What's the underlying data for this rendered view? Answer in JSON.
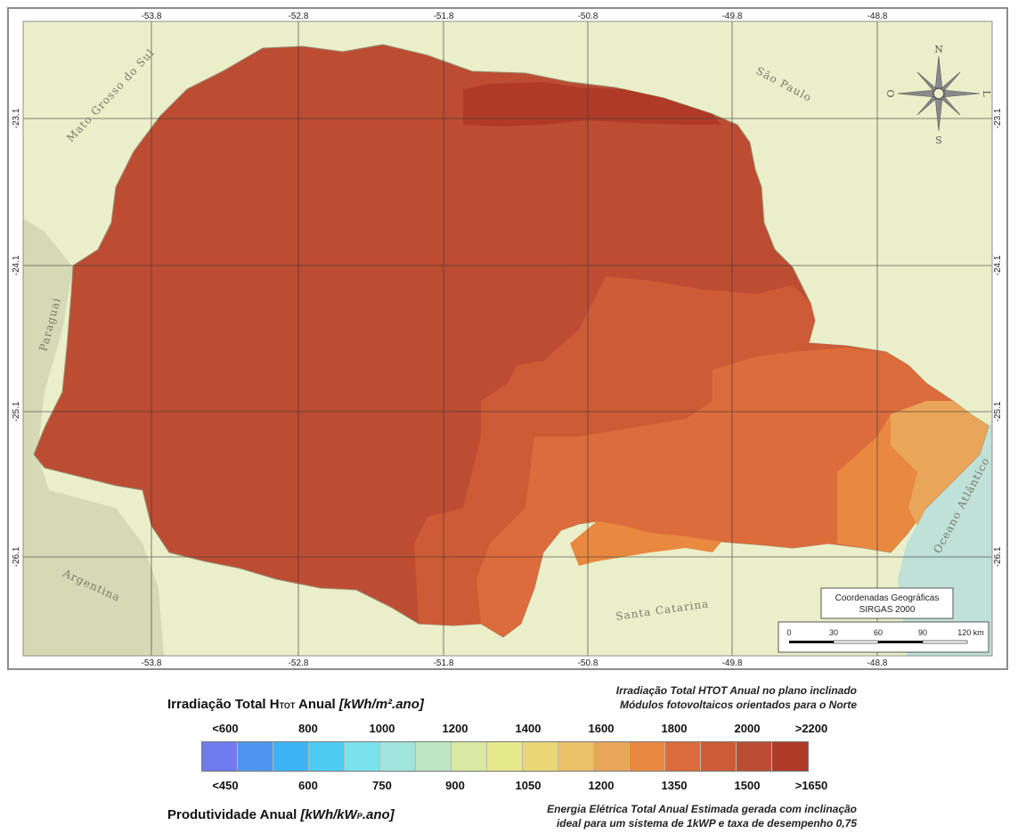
{
  "map": {
    "graticule_lon_labels": [
      "-53.8",
      "-52.8",
      "-51.8",
      "-50.8",
      "-49.8",
      "-48.8"
    ],
    "graticule_lat_labels": [
      "-23.1",
      "-24.1",
      "-25.1",
      "-26.1"
    ],
    "regions": {
      "mato_grosso_do_sul": "Mato Grosso do Sul",
      "sao_paulo": "São Paulo",
      "paraguai": "Paraguai",
      "argentina": "Argentina",
      "santa_catarina": "Santa Catarina",
      "oceano": "Oceano Atlântico"
    },
    "compass": {
      "n": "N",
      "s": "S",
      "l": "L",
      "o": "O"
    },
    "info_box": {
      "line1": "Coordenadas Geográficas",
      "line2": "SIRGAS 2000"
    },
    "scalebar": {
      "ticks": [
        "0",
        "30",
        "60",
        "90",
        "120 km"
      ]
    },
    "colors": {
      "land_outside": "#eaefca",
      "paraguay_argentina": "#d6d9b6",
      "ocean": "#bfe1d8",
      "state_main": "#bc4d33",
      "state_darkest": "#b03a28",
      "state_mid": "#cd5b35",
      "state_orange": "#dc6c3b",
      "state_light": "#e8893f",
      "state_lightest": "#e9a55a"
    }
  },
  "legend": {
    "irradiation_title_main": "Irradiação Total H",
    "irradiation_title_sub": "TOT",
    "irradiation_title_rest": " Anual ",
    "irradiation_title_unit": "[kWh/m².ano]",
    "productivity_title_main": "Produtividade Anual ",
    "productivity_title_unit": "[kWh/kW",
    "productivity_title_sub": "P",
    "productivity_title_unit_end": ".ano]",
    "note_top_line1": "Irradiação Total HTOT Anual no plano inclinado",
    "note_top_line2": "Módulos fotovoltaicos orientados para o Norte",
    "note_bottom_line1": "Energia Elétrica Total Anual Estimada gerada com inclinação",
    "note_bottom_line2": "ideal para um sistema de 1kWP e taxa de desempenho  0,75",
    "irradiation_scale": [
      "<600",
      "800",
      "1000",
      "1200",
      "1400",
      "1600",
      "1800",
      "2000",
      ">2200"
    ],
    "productivity_scale": [
      "<450",
      "600",
      "750",
      "900",
      "1050",
      "1200",
      "1350",
      "1500",
      ">1650"
    ],
    "colorbar": [
      "#6f7bee",
      "#4f95f0",
      "#3cb3f3",
      "#4dcdf3",
      "#7ae2ec",
      "#9fe5dc",
      "#bfe6c2",
      "#d8e9a2",
      "#e6e98a",
      "#e9d776",
      "#e9c168",
      "#e9a55a",
      "#e8893f",
      "#dc6c3b",
      "#cd5b35",
      "#bc4d33",
      "#b03a28"
    ]
  }
}
